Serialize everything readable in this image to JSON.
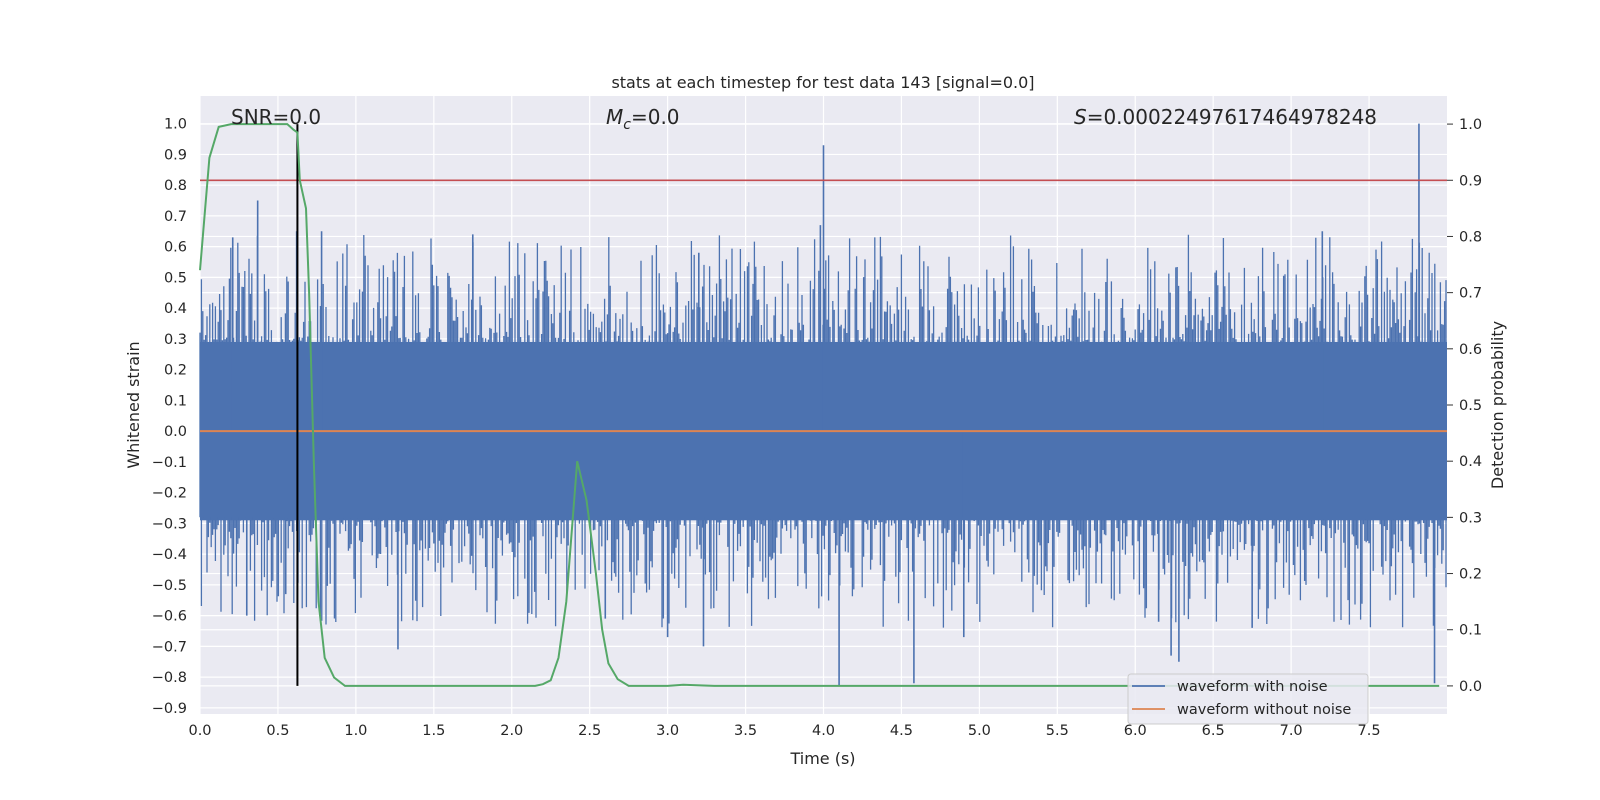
{
  "chart_data": {
    "type": "line",
    "title": "stats at each timestep for test data 143 [signal=0.0]",
    "xlabel": "Time (s)",
    "ylabel": "Whitened strain",
    "ylabel_right": "Detection probability",
    "xlim": [
      0.0,
      8.0
    ],
    "ylim": [
      -0.92,
      1.09
    ],
    "ylim_right": [
      -0.05,
      1.05
    ],
    "x_ticks": [
      "0.0",
      "0.5",
      "1.0",
      "1.5",
      "2.0",
      "2.5",
      "3.0",
      "3.5",
      "4.0",
      "4.5",
      "5.0",
      "5.5",
      "6.0",
      "6.5",
      "7.0",
      "7.5"
    ],
    "y_ticks": [
      "1.0",
      "0.9",
      "0.8",
      "0.7",
      "0.6",
      "0.5",
      "0.4",
      "0.3",
      "0.2",
      "0.1",
      "0.0",
      "−0.1",
      "−0.2",
      "−0.3",
      "−0.4",
      "−0.5",
      "−0.6",
      "−0.7",
      "−0.8",
      "−0.9"
    ],
    "y_ticks_right": [
      "1.0",
      "0.9",
      "0.8",
      "0.7",
      "0.6",
      "0.5",
      "0.4",
      "0.3",
      "0.2",
      "0.1",
      "0.0"
    ],
    "grid": true,
    "legend_position": "bottom-right",
    "annotations": {
      "snr": "SNR=0.0",
      "mc_symbol": "M",
      "mc_sub": "c",
      "mc_value": "=0.0",
      "s_symbol": "S",
      "s_value": "=0.00022497617464978248"
    },
    "threshold": 0.9,
    "peak_time": 0.625,
    "series": [
      {
        "name": "waveform with noise",
        "color": "#4c72b0",
        "envelope": "dense noise between about -0.3 and 0.3 with spikes",
        "spikes": [
          {
            "x": 0.37,
            "y": 0.75
          },
          {
            "x": 0.21,
            "y": 0.63
          },
          {
            "x": 0.3,
            "y": -0.6
          },
          {
            "x": 0.55,
            "y": -0.53
          },
          {
            "x": 0.62,
            "y": 0.65
          },
          {
            "x": 0.78,
            "y": 0.65
          },
          {
            "x": 1.27,
            "y": -0.71
          },
          {
            "x": 1.75,
            "y": 0.64
          },
          {
            "x": 2.6,
            "y": -0.61
          },
          {
            "x": 3.0,
            "y": -0.67
          },
          {
            "x": 3.23,
            "y": -0.7
          },
          {
            "x": 3.2,
            "y": 0.58
          },
          {
            "x": 4.0,
            "y": 0.93
          },
          {
            "x": 3.98,
            "y": 0.67
          },
          {
            "x": 4.1,
            "y": -0.83
          },
          {
            "x": 4.58,
            "y": -0.82
          },
          {
            "x": 4.9,
            "y": -0.67
          },
          {
            "x": 6.23,
            "y": -0.73
          },
          {
            "x": 6.28,
            "y": -0.75
          },
          {
            "x": 6.75,
            "y": -0.64
          },
          {
            "x": 7.2,
            "y": 0.65
          },
          {
            "x": 7.82,
            "y": 1.0
          },
          {
            "x": 7.92,
            "y": -0.82
          },
          {
            "x": 6.15,
            "y": -0.62
          }
        ]
      },
      {
        "name": "waveform without noise",
        "color": "#dd8452",
        "y_constant": 0.0
      },
      {
        "name": "",
        "color": "#55a868",
        "axis": "right",
        "x": [
          0.0,
          0.06,
          0.12,
          0.2,
          0.3,
          0.4,
          0.5,
          0.56,
          0.6,
          0.625,
          0.64,
          0.68,
          0.7,
          0.73,
          0.76,
          0.8,
          0.86,
          0.93,
          1.0,
          1.5,
          2.0,
          2.15,
          2.2,
          2.25,
          2.3,
          2.35,
          2.42,
          2.48,
          2.54,
          2.58,
          2.62,
          2.68,
          2.75,
          3.0,
          3.1,
          3.3,
          4.0,
          6.0,
          7.95
        ],
        "y": [
          0.74,
          0.94,
          0.995,
          1.0,
          1.0,
          1.0,
          1.0,
          1.0,
          0.99,
          0.985,
          0.9,
          0.85,
          0.7,
          0.4,
          0.15,
          0.05,
          0.015,
          0.0,
          0.0,
          0.0,
          0.0,
          0.0,
          0.003,
          0.01,
          0.05,
          0.15,
          0.4,
          0.33,
          0.2,
          0.1,
          0.04,
          0.012,
          0.0,
          0.0,
          0.002,
          0.0,
          0.0,
          0.0,
          0.0
        ]
      }
    ]
  }
}
